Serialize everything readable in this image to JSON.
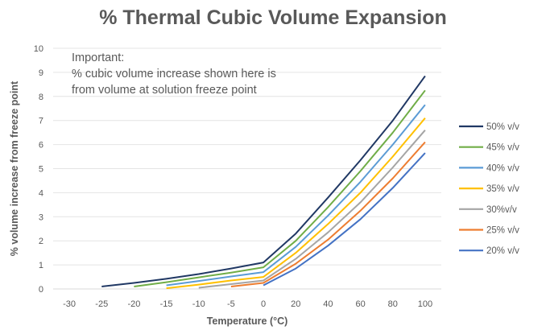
{
  "chart_data": {
    "type": "line",
    "title": "% Thermal Cubic Volume Expansion",
    "xlabel": "Temperature (°C)",
    "ylabel": "% volume increase from freeze point",
    "categories": [
      "-30",
      "-25",
      "-20",
      "-15",
      "-10",
      "-5",
      "0",
      "20",
      "40",
      "60",
      "80",
      "100"
    ],
    "ylim": [
      0,
      10
    ],
    "yticks": [
      "0",
      "1",
      "2",
      "3",
      "4",
      "5",
      "6",
      "7",
      "8",
      "9",
      "10"
    ],
    "grid": true,
    "legend_position": "right",
    "annotation": [
      "Important:",
      "% cubic volume increase shown here is",
      "from volume at solution freeze point"
    ],
    "series": [
      {
        "name": "50% v/v",
        "color": "#203864",
        "values": [
          null,
          0.1,
          0.25,
          0.42,
          0.62,
          0.85,
          1.1,
          2.3,
          3.8,
          5.35,
          7.0,
          8.85
        ]
      },
      {
        "name": "45% v/v",
        "color": "#70AD47",
        "values": [
          null,
          null,
          0.1,
          0.28,
          0.48,
          0.68,
          0.9,
          2.0,
          3.4,
          4.9,
          6.5,
          8.25
        ]
      },
      {
        "name": "40% v/v",
        "color": "#5B9BD5",
        "values": [
          null,
          null,
          null,
          0.15,
          0.33,
          0.52,
          0.7,
          1.75,
          3.05,
          4.45,
          6.0,
          7.65
        ]
      },
      {
        "name": "35% v/v",
        "color": "#FFC000",
        "values": [
          null,
          null,
          null,
          0.03,
          0.18,
          0.35,
          0.5,
          1.5,
          2.7,
          4.0,
          5.5,
          7.1
        ]
      },
      {
        "name": "30%v/v",
        "color": "#A5A5A5",
        "values": [
          null,
          null,
          null,
          null,
          0.05,
          0.2,
          0.35,
          1.25,
          2.35,
          3.6,
          5.05,
          6.6
        ]
      },
      {
        "name": "25% v/v",
        "color": "#ED7D31",
        "values": [
          null,
          null,
          null,
          null,
          null,
          0.1,
          0.25,
          1.05,
          2.05,
          3.25,
          4.6,
          6.1
        ]
      },
      {
        "name": "20% v/v",
        "color": "#4472C4",
        "values": [
          null,
          null,
          null,
          null,
          null,
          null,
          0.15,
          0.85,
          1.8,
          2.9,
          4.2,
          5.65
        ]
      }
    ]
  }
}
